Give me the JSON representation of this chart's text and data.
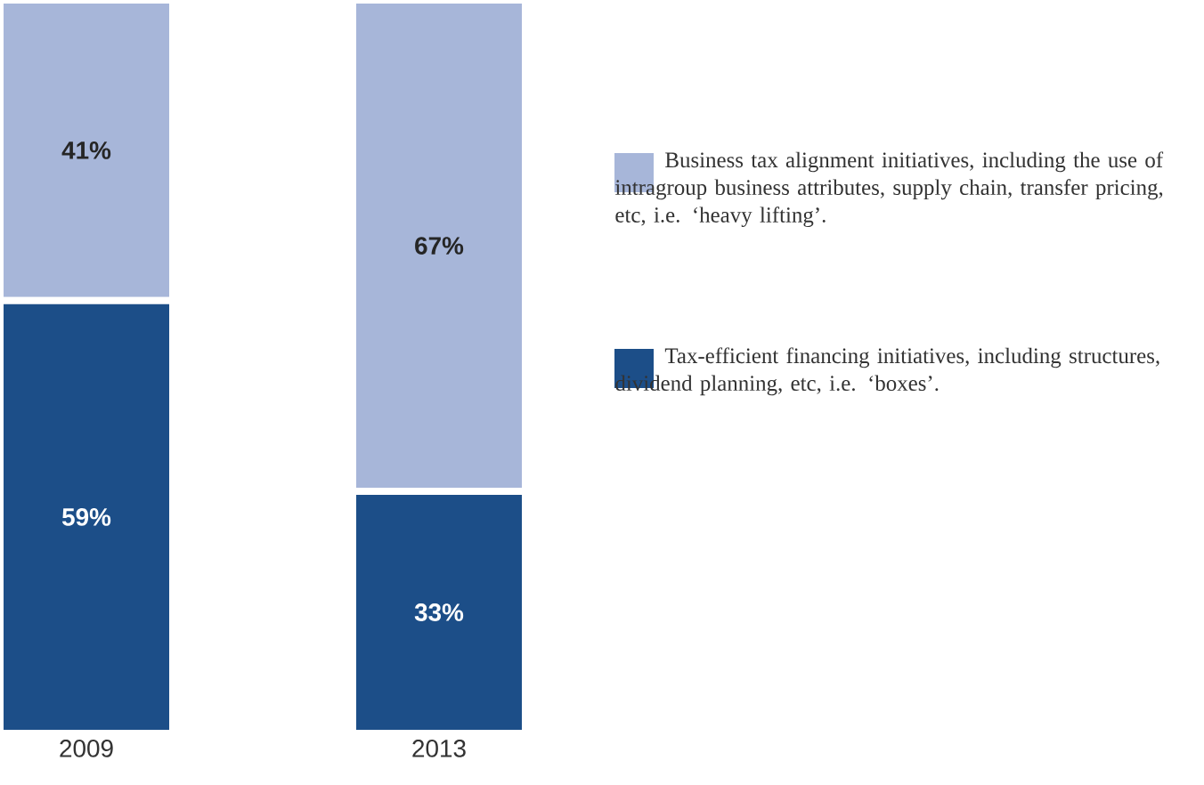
{
  "chart_data": {
    "type": "bar",
    "stacked": true,
    "categories": [
      "2009",
      "2013"
    ],
    "series": [
      {
        "name": "Tax-efficient financing initiatives, including structures, dividend planning, etc, i.e. ‘boxes’.",
        "color": "#1c4e88",
        "values": [
          59,
          33
        ],
        "value_labels": [
          "59%",
          "33%"
        ]
      },
      {
        "name": "Business tax alignment initiatives, including the use of intragroup business attributes, supply chain, transfer pricing, etc, i.e. ‘heavy lifting’.",
        "color": "#a7b6d9",
        "values": [
          41,
          67
        ],
        "value_labels": [
          "41%",
          "67%"
        ]
      }
    ],
    "legend": "right"
  }
}
